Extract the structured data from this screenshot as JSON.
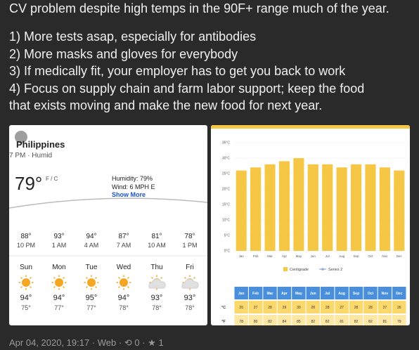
{
  "post": {
    "text_lines": [
      "CV problem despite high temps in the 90F+ range much of the year.",
      "1) More tests asap, especially for antibodies",
      "2) More masks and gloves for everybody",
      "3) If medically fit, your employer has to get you back to work",
      "4) Focus on supply chain and farm labor support; keep the food",
      "that exists moving and make the new food for next year."
    ]
  },
  "weather": {
    "location": "Philippines",
    "time": "7 PM · Humid",
    "temp": "79°",
    "unit": "F / C",
    "humidity": "Humidity: 79%",
    "wind": "Wind: 6 MPH E",
    "more": "Show More",
    "hourly": [
      {
        "temp": "88°",
        "time": "10 PM"
      },
      {
        "temp": "93°",
        "time": "1 AM"
      },
      {
        "temp": "94°",
        "time": "4 AM"
      },
      {
        "temp": "87°",
        "time": "7 AM"
      },
      {
        "temp": "81°",
        "time": "10 AM"
      },
      {
        "temp": "78°",
        "time": "1 PM"
      }
    ],
    "daily": [
      {
        "day": "Sun",
        "high": "94°",
        "low": "75°"
      },
      {
        "day": "Mon",
        "high": "94°",
        "low": "77°"
      },
      {
        "day": "Tue",
        "high": "95°",
        "low": "77°"
      },
      {
        "day": "Wed",
        "high": "94°",
        "low": "78°"
      },
      {
        "day": "Thu",
        "high": "93°",
        "low": "78°"
      },
      {
        "day": "Fri",
        "high": "93°",
        "low": "78°"
      }
    ]
  },
  "chart": {
    "type": "bar",
    "categories": [
      "Jan",
      "Feb",
      "Mar",
      "Apr",
      "May",
      "Jun",
      "Jul",
      "Aug",
      "Sep",
      "Oct",
      "Nov",
      "Dec"
    ],
    "series": [
      {
        "name": "Centigrade",
        "color": "#f6c744",
        "row_label": "°C",
        "values": [
          26,
          27,
          28,
          29,
          30,
          28,
          28,
          27,
          28,
          28,
          27,
          26
        ]
      },
      {
        "name": "Series 2",
        "color": "#8fa9d6",
        "row_label": "°F",
        "values": [
          78,
          80,
          82,
          84,
          85,
          82,
          82,
          81,
          82,
          82,
          81,
          79
        ]
      }
    ],
    "ylim": [
      0,
      35
    ],
    "yticks": [
      {
        "value": 0,
        "label": "0°C"
      },
      {
        "value": 5,
        "label": "5°C"
      },
      {
        "value": 10,
        "label": "10°C"
      },
      {
        "value": 15,
        "label": "15°C"
      },
      {
        "value": 20,
        "label": "20°C"
      },
      {
        "value": 25,
        "label": "25°C"
      },
      {
        "value": 30,
        "label": "30°C"
      },
      {
        "value": 35,
        "label": "35°C"
      }
    ],
    "grid": true
  },
  "footer": {
    "date": "Apr 04, 2020, 19:17",
    "source": "Web",
    "reposts": "0",
    "likes": "1"
  }
}
